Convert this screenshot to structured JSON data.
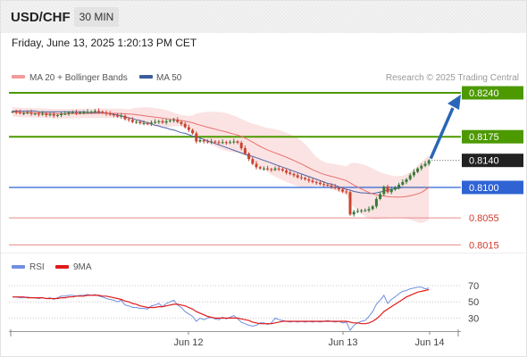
{
  "header": {
    "pair": "USD/CHF",
    "timeframe": "30 MIN"
  },
  "timestamp": "Friday, June 13, 2025 1:20:13 PM CET",
  "legend": {
    "ma20_bb": "MA 20 + Bollinger Bands",
    "ma50": "MA 50",
    "credit": "Research © 2025 Trading Central",
    "rsi": "RSI",
    "ma9": "9MA"
  },
  "colors": {
    "resistance": "#4c9900",
    "pivot": "#2f63d4",
    "support": "#e88a8a",
    "last": "#222222",
    "candle_up": "#3a7a3a",
    "candle_down": "#c8432f",
    "ma20": "#e86f6f",
    "ma50": "#4a63a8",
    "band": "#fbe0e0",
    "arrow": "#2a65b8",
    "rsi": "#6f8fe0",
    "rsi_ma": "#e01a1a"
  },
  "chart_data": {
    "type": "candlestick",
    "levels": [
      {
        "label": "0.8240",
        "value": 0.824,
        "kind": "resistance"
      },
      {
        "label": "0.8175",
        "value": 0.8175,
        "kind": "resistance"
      },
      {
        "label": "0.8140",
        "value": 0.814,
        "kind": "last"
      },
      {
        "label": "0.8100",
        "value": 0.81,
        "kind": "pivot"
      },
      {
        "label": "0.8055",
        "value": 0.8055,
        "kind": "support"
      },
      {
        "label": "0.8015",
        "value": 0.8015,
        "kind": "support"
      }
    ],
    "close": [
      0.8212,
      0.8211,
      0.821,
      0.821,
      0.8211,
      0.8209,
      0.8209,
      0.8208,
      0.8209,
      0.8207,
      0.8208,
      0.8206,
      0.8207,
      0.8209,
      0.8209,
      0.8211,
      0.8211,
      0.821,
      0.8211,
      0.8211,
      0.8212,
      0.8212,
      0.8213,
      0.8212,
      0.8211,
      0.8209,
      0.8208,
      0.8207,
      0.8205,
      0.8206,
      0.8201,
      0.82,
      0.8197,
      0.8197,
      0.8195,
      0.8195,
      0.8194,
      0.8196,
      0.8197,
      0.8198,
      0.8196,
      0.8198,
      0.8199,
      0.82,
      0.8197,
      0.8194,
      0.8189,
      0.8185,
      0.818,
      0.8168,
      0.817,
      0.8168,
      0.8167,
      0.8168,
      0.8167,
      0.8166,
      0.8167,
      0.8166,
      0.8167,
      0.8168,
      0.8166,
      0.8158,
      0.815,
      0.8142,
      0.8135,
      0.813,
      0.8128,
      0.8128,
      0.8127,
      0.8126,
      0.8128,
      0.8127,
      0.8125,
      0.8122,
      0.812,
      0.8118,
      0.8115,
      0.8114,
      0.8112,
      0.811,
      0.8108,
      0.8107,
      0.8105,
      0.8104,
      0.8103,
      0.8101,
      0.8099,
      0.8097,
      0.8094,
      0.8093,
      0.806,
      0.8064,
      0.8065,
      0.8066,
      0.8066,
      0.8068,
      0.8072,
      0.8083,
      0.809,
      0.8101,
      0.8093,
      0.8097,
      0.81,
      0.8104,
      0.8108,
      0.8112,
      0.8118,
      0.8123,
      0.8128,
      0.8132,
      0.8135,
      0.814
    ],
    "ma50": [
      0.8213,
      0.8213,
      0.8213,
      0.8213,
      0.8213,
      0.8213,
      0.8213,
      0.8212,
      0.8212,
      0.8212,
      0.8212,
      0.8212,
      0.8212,
      0.8212,
      0.8212,
      0.8212,
      0.8212,
      0.8212,
      0.8212,
      0.8212,
      0.8211,
      0.8211,
      0.8211,
      0.8211,
      0.8211,
      0.821,
      0.8209,
      0.8208,
      0.8207,
      0.8206,
      0.8204,
      0.8203,
      0.8202,
      0.82,
      0.8199,
      0.8197,
      0.8196,
      0.8194,
      0.8192,
      0.8191,
      0.8189,
      0.8188,
      0.8186,
      0.8185,
      0.8183,
      0.8181,
      0.818,
      0.8178,
      0.8176,
      0.8175,
      0.8173,
      0.8171,
      0.8169,
      0.8167,
      0.8165,
      0.8163,
      0.8161,
      0.8159,
      0.8157,
      0.8155,
      0.8153,
      0.8151,
      0.8149,
      0.8147,
      0.8146,
      0.8144,
      0.8142,
      0.814,
      0.8138,
      0.8136,
      0.8134,
      0.8132,
      0.813,
      0.8128,
      0.8126,
      0.8124,
      0.8122,
      0.812,
      0.8118,
      0.8116,
      0.8114,
      0.8112,
      0.811,
      0.8108,
      0.8106,
      0.8105,
      0.8103,
      0.8101,
      0.8099,
      0.8097,
      0.8096,
      0.8094,
      0.8093,
      0.8092,
      0.8092,
      0.8091,
      0.8091,
      0.8092,
      0.8093,
      0.8095,
      0.8096,
      0.8097,
      0.8098,
      0.8099,
      0.81,
      0.81,
      0.81,
      0.81,
      0.81,
      0.81,
      0.81,
      0.81
    ],
    "rsi": [
      56,
      56,
      55,
      55,
      56,
      55,
      55,
      54,
      55,
      54,
      55,
      53,
      55,
      57,
      57,
      58,
      58,
      57,
      58,
      58,
      59,
      58,
      59,
      57,
      56,
      54,
      53,
      52,
      50,
      52,
      46,
      45,
      43,
      43,
      42,
      42,
      41,
      45,
      46,
      48,
      44,
      48,
      50,
      52,
      46,
      43,
      38,
      35,
      32,
      26,
      30,
      28,
      30,
      31,
      29,
      28,
      31,
      29,
      31,
      33,
      29,
      25,
      23,
      21,
      20,
      21,
      24,
      24,
      22,
      24,
      30,
      28,
      27,
      26,
      25,
      26,
      25,
      26,
      25,
      26,
      25,
      26,
      25,
      26,
      27,
      26,
      25,
      26,
      24,
      25,
      15,
      21,
      24,
      26,
      27,
      32,
      38,
      47,
      52,
      58,
      48,
      53,
      56,
      60,
      63,
      64,
      66,
      67,
      68,
      68,
      66,
      67
    ],
    "rsi_ma": [
      56,
      56,
      56,
      56,
      55,
      55,
      55,
      55,
      55,
      54,
      54,
      54,
      54,
      55,
      55,
      56,
      56,
      57,
      57,
      57,
      58,
      58,
      58,
      58,
      57,
      57,
      56,
      55,
      54,
      53,
      51,
      50,
      48,
      47,
      45,
      44,
      43,
      43,
      43,
      44,
      44,
      45,
      46,
      47,
      47,
      46,
      45,
      43,
      41,
      38,
      36,
      34,
      32,
      31,
      30,
      30,
      30,
      30,
      30,
      30,
      30,
      29,
      28,
      27,
      25,
      24,
      23,
      23,
      23,
      23,
      24,
      25,
      26,
      26,
      26,
      26,
      26,
      26,
      26,
      26,
      26,
      26,
      26,
      26,
      26,
      26,
      26,
      26,
      26,
      26,
      25,
      24,
      24,
      23,
      23,
      24,
      26,
      29,
      33,
      38,
      41,
      44,
      47,
      50,
      53,
      56,
      58,
      60,
      62,
      63,
      64,
      65
    ],
    "rsi_ticks": [
      70,
      50,
      30
    ],
    "x_ticks": [
      "Jun 12",
      "Jun 13",
      "Jun 14"
    ]
  }
}
